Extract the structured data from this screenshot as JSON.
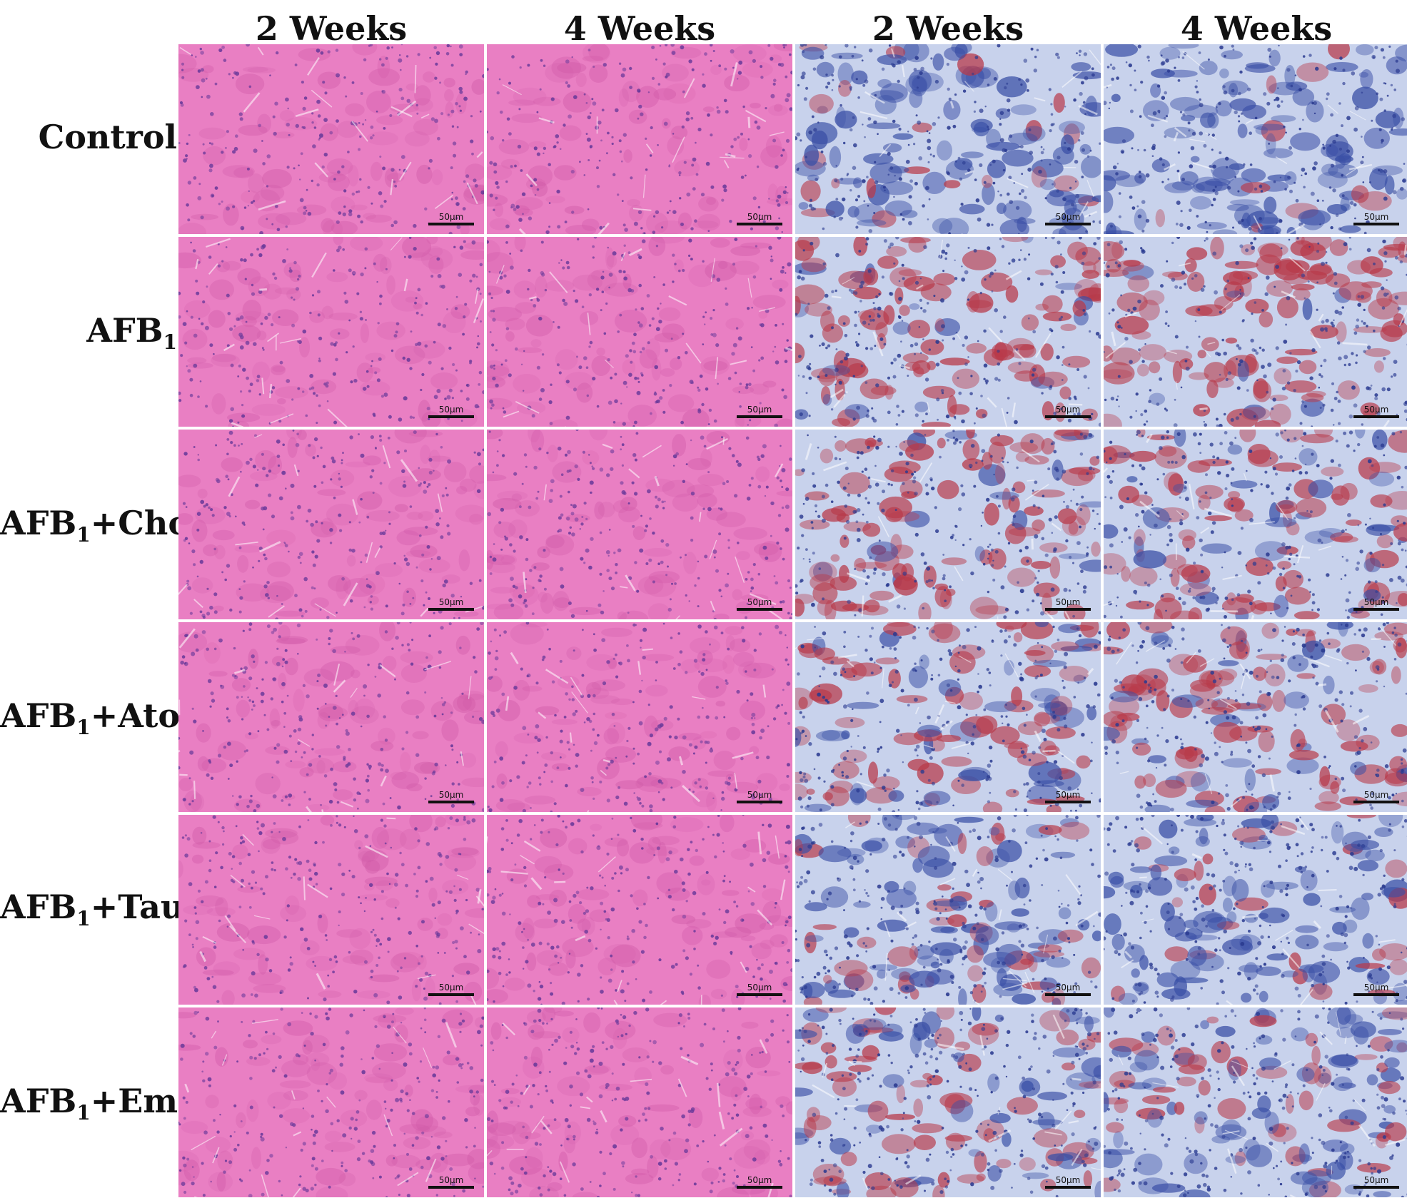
{
  "columns": [
    "2 Weeks",
    "4 Weeks",
    "2 Weeks",
    "4 Weeks"
  ],
  "rows": [
    {
      "base": "Control",
      "sub": "",
      "rest": ""
    },
    {
      "base": "AFB",
      "sub": "1",
      "rest": ""
    },
    {
      "base": "AFB",
      "sub": "1",
      "rest": "+Cho"
    },
    {
      "base": "AFB",
      "sub": "1",
      "rest": "+Ato"
    },
    {
      "base": "AFB",
      "sub": "1",
      "rest": "+Tau"
    },
    {
      "base": "AFB",
      "sub": "1",
      "rest": "+Emo"
    }
  ],
  "scale_bar_label": "50μm",
  "stains": {
    "he": {
      "background": "#e97fc3",
      "cell": "#d05aa8",
      "nucleus": "#6a3a9a"
    },
    "ihc": {
      "background": "#c8d2ec",
      "cell": "#3a4fa6",
      "nucleus": "#2a3a90",
      "positive": "#b83a4a"
    }
  },
  "ihc_intensity": [
    [
      0.15,
      0.05
    ],
    [
      0.85,
      0.9
    ],
    [
      0.85,
      0.75
    ],
    [
      0.7,
      0.7
    ],
    [
      0.4,
      0.2
    ],
    [
      0.55,
      0.45
    ]
  ]
}
